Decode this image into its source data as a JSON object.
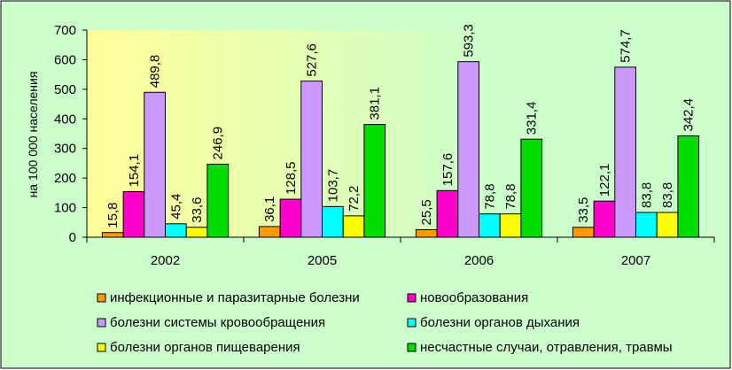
{
  "chart_data": {
    "type": "bar",
    "ylabel": "на 100 000   населения",
    "ylim": [
      0,
      700
    ],
    "yticks": [
      0,
      100,
      200,
      300,
      400,
      500,
      600,
      700
    ],
    "grid": false,
    "legend_position": "bottom",
    "categories": [
      "2002",
      "2005",
      "2006",
      "2007"
    ],
    "series": [
      {
        "name": "инфекционные и паразитарные болезни",
        "color": "#ff9900",
        "values": [
          15.8,
          36.1,
          25.5,
          33.5
        ],
        "labels": [
          "15,8",
          "36,1",
          "25,5",
          "33,5"
        ]
      },
      {
        "name": "новообразования",
        "color": "#ff00cc",
        "values": [
          154.1,
          128.5,
          157.6,
          122.1
        ],
        "labels": [
          "154,1",
          "128,5",
          "157,6",
          "122,1"
        ]
      },
      {
        "name": "болезни системы кровообращения",
        "color": "#cc99ff",
        "values": [
          489.8,
          527.6,
          593.3,
          574.7
        ],
        "labels": [
          "489,8",
          "527,6",
          "593,3",
          "574,7"
        ]
      },
      {
        "name": "болезни органов дыхания",
        "color": "#00ffff",
        "values": [
          45.4,
          103.7,
          78.8,
          83.8
        ],
        "labels": [
          "45,4",
          "103,7",
          "78,8",
          "83,8"
        ]
      },
      {
        "name": "болезни органов пищеварения",
        "color": "#ffff00",
        "values": [
          33.6,
          72.2,
          78.8,
          83.8
        ],
        "labels": [
          "33,6",
          "72,2",
          "78,8",
          "83,8"
        ]
      },
      {
        "name": "несчастные случаи, отравления, травмы",
        "color": "#00dd00",
        "values": [
          246.9,
          381.1,
          331.4,
          342.4
        ],
        "labels": [
          "246,9",
          "381,1",
          "331,4",
          "342,4"
        ]
      }
    ]
  },
  "colors": {
    "background": "#ccffcc",
    "plot_gradient_from": "#ffff99",
    "plot_gradient_to": "#ccffcc"
  }
}
